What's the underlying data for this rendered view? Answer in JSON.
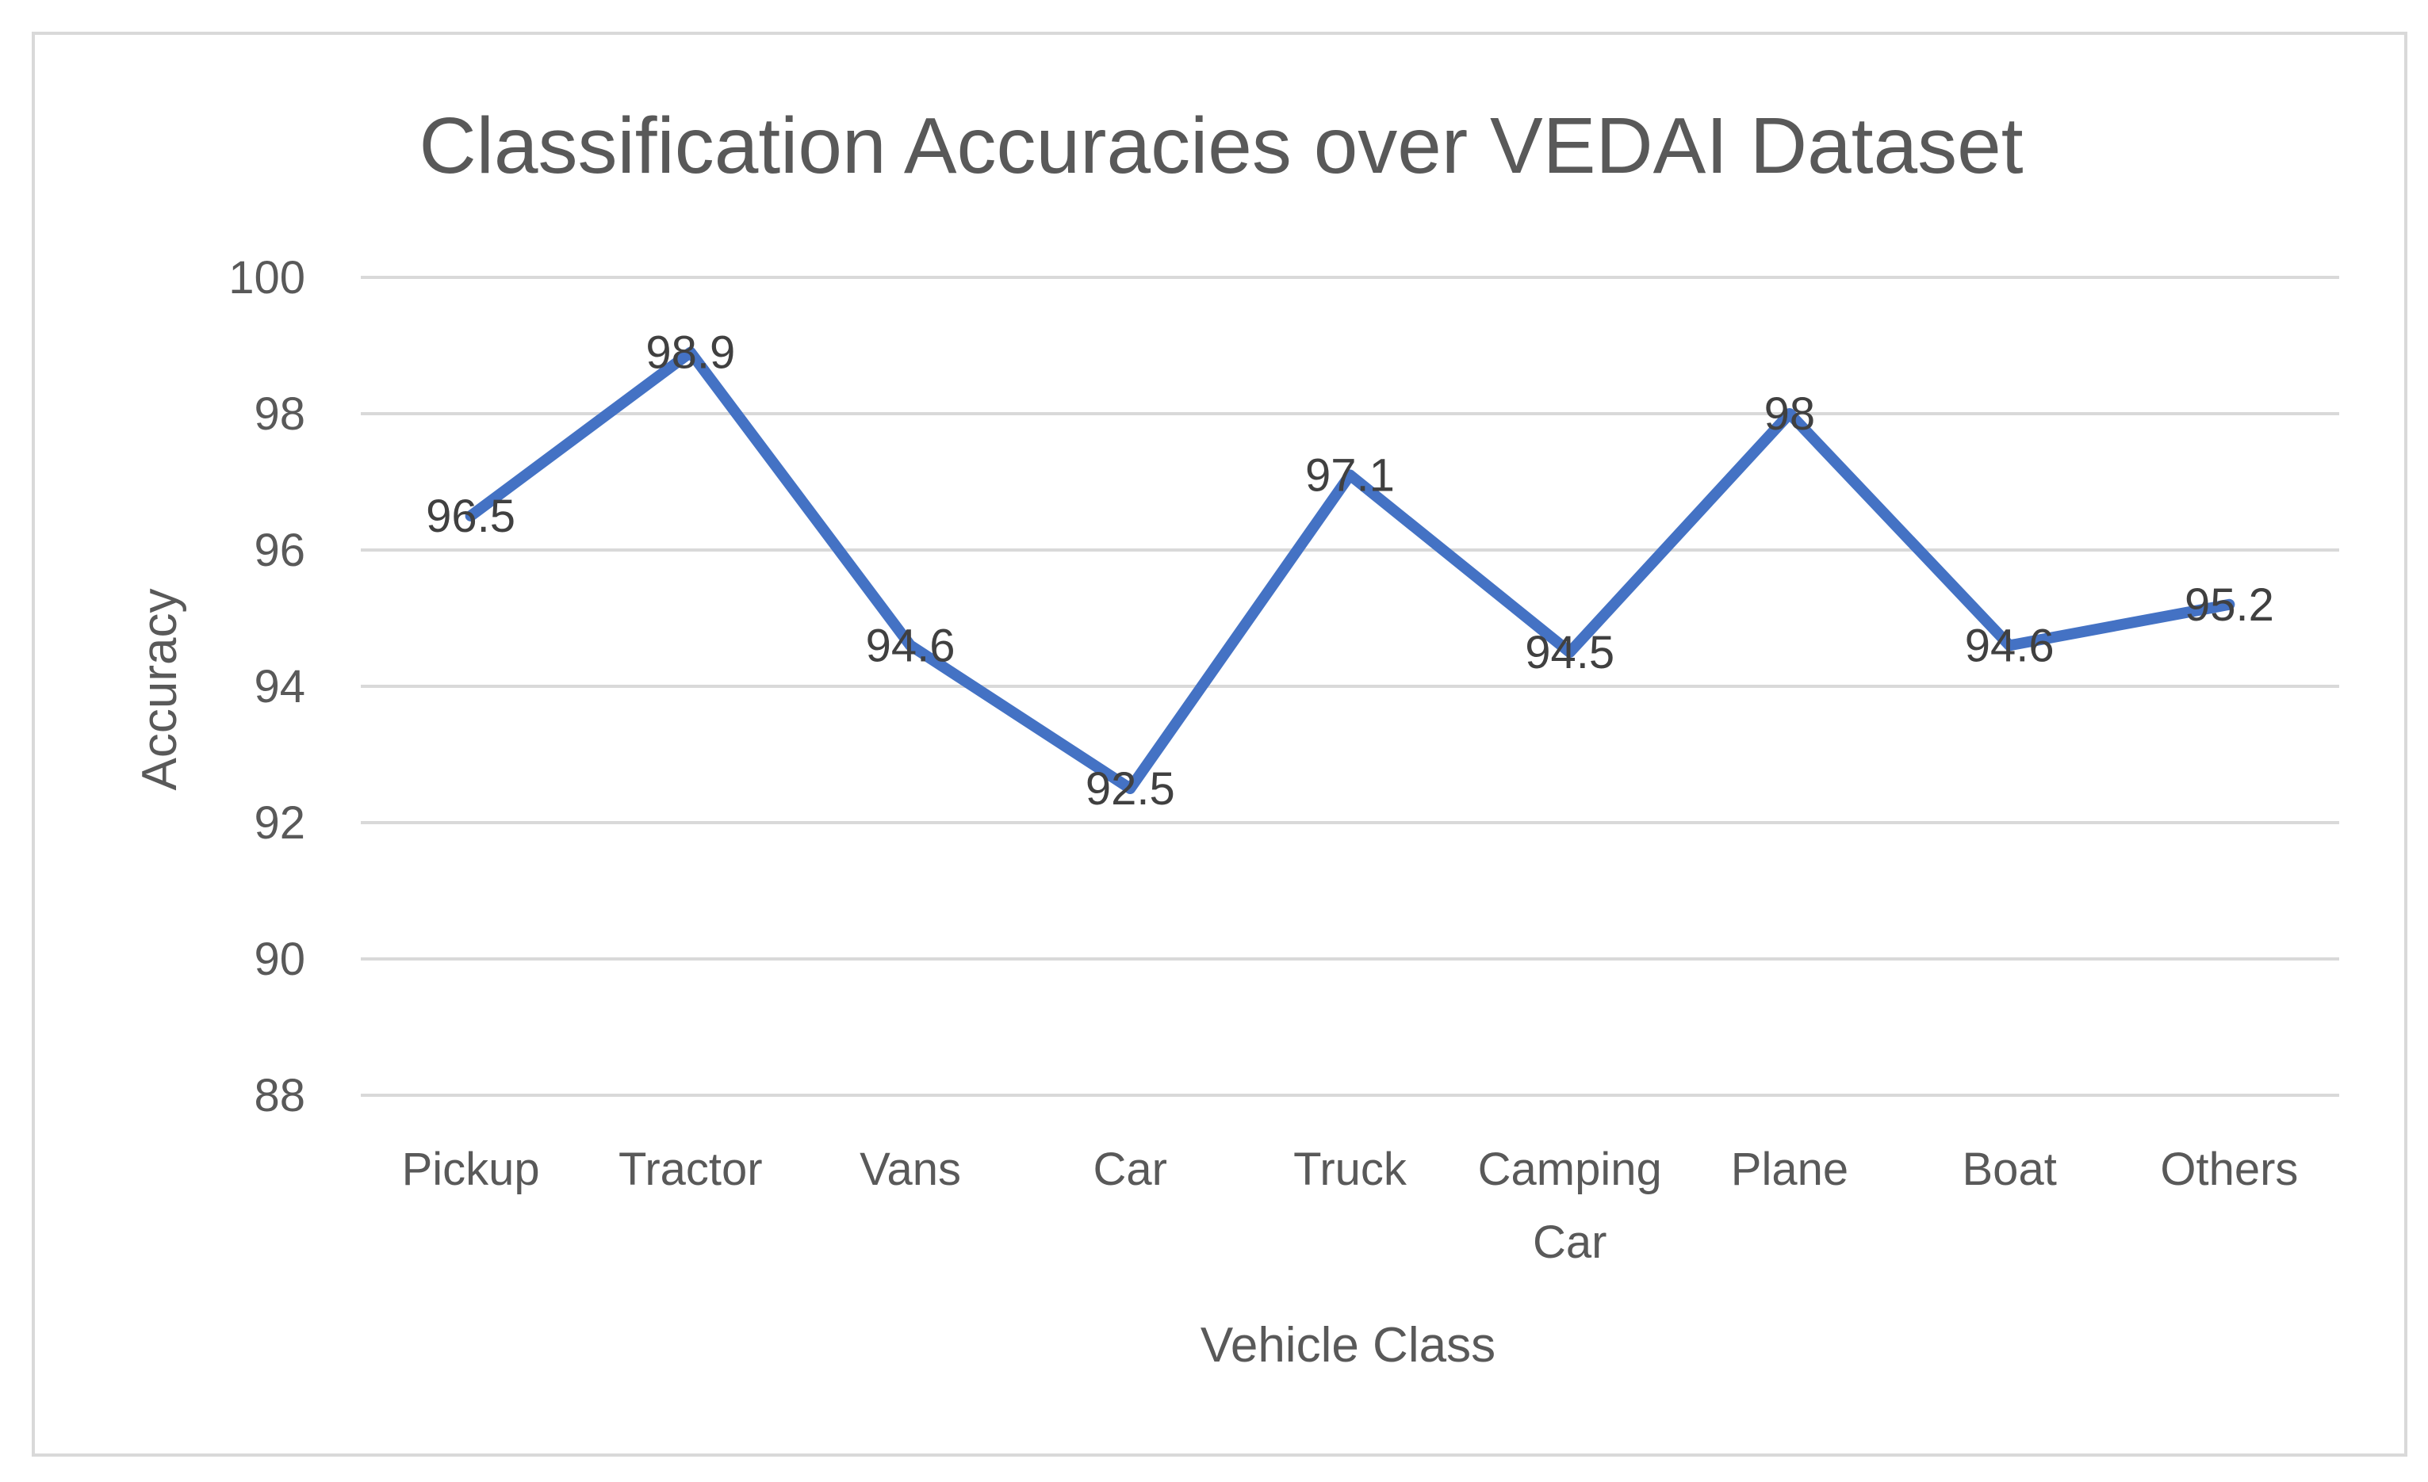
{
  "chart_data": {
    "type": "line",
    "title": "Classification Accuracies over VEDAI Dataset",
    "xlabel": "Vehicle Class",
    "ylabel": "Accuracy",
    "categories": [
      "Pickup",
      "Tractor",
      "Vans",
      "Car",
      "Truck",
      "Camping Car",
      "Plane",
      "Boat",
      "Others"
    ],
    "series": [
      {
        "values": [
          96.5,
          98.9,
          94.6,
          92.5,
          97.1,
          94.5,
          98,
          94.6,
          95.2
        ],
        "color": "#4472c4"
      }
    ],
    "data_labels": [
      "96.5",
      "98.9",
      "94.6",
      "92.5",
      "97.1",
      "94.5",
      "98",
      "94.6",
      "95.2"
    ],
    "ylim": [
      88,
      100
    ],
    "yticks": [
      100,
      98,
      96,
      94,
      92,
      90,
      88
    ],
    "grid": true,
    "legend": "none",
    "gridline_color": "#d9d9d9",
    "text_color": "#595959"
  }
}
